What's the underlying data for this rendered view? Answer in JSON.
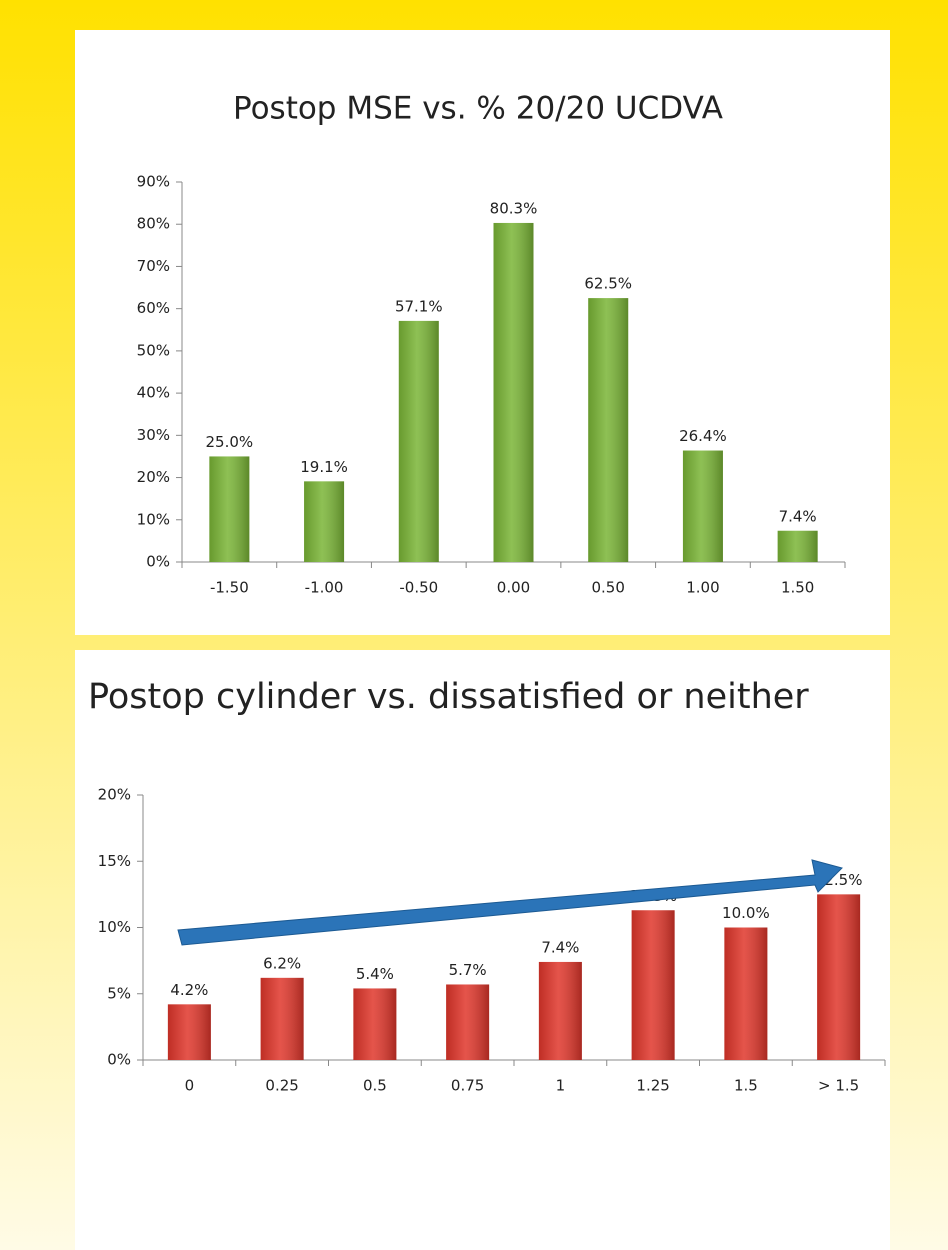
{
  "chart_data": [
    {
      "type": "bar",
      "title": "Postop MSE vs. % 20/20 UCDVA",
      "categories": [
        "-1.50",
        "-1.00",
        "-0.50",
        "0.00",
        "0.50",
        "1.00",
        "1.50"
      ],
      "values": [
        25.0,
        19.1,
        57.1,
        80.3,
        62.5,
        26.4,
        7.4
      ],
      "value_labels": [
        "25.0%",
        "19.1%",
        "57.1%",
        "80.3%",
        "62.5%",
        "26.4%",
        "7.4%"
      ],
      "color": "#7ab536",
      "ylim": [
        0,
        90
      ],
      "yticks": [
        {
          "value": 0,
          "label": "0%"
        },
        {
          "value": 10,
          "label": "10%"
        },
        {
          "value": 20,
          "label": "20%"
        },
        {
          "value": 30,
          "label": "30%"
        },
        {
          "value": 40,
          "label": "40%"
        },
        {
          "value": 50,
          "label": "50%"
        },
        {
          "value": 60,
          "label": "60%"
        },
        {
          "value": 70,
          "label": "70%"
        },
        {
          "value": 80,
          "label": "80%"
        },
        {
          "value": 90,
          "label": "90%"
        }
      ]
    },
    {
      "type": "bar",
      "title": "Postop cylinder vs. dissatisfied or neither",
      "categories": [
        "0",
        "0.25",
        "0.5",
        "0.75",
        "1",
        "1.25",
        "1.5",
        "> 1.5"
      ],
      "values": [
        4.2,
        6.2,
        5.4,
        5.7,
        7.4,
        11.3,
        10.0,
        12.5
      ],
      "value_labels": [
        "4.2%",
        "6.2%",
        "5.4%",
        "5.7%",
        "7.4%",
        "11.3%",
        "10.0%",
        "12.5%"
      ],
      "color": "#e0362b",
      "ylim": [
        0,
        20
      ],
      "yticks": [
        {
          "value": 0,
          "label": "0%"
        },
        {
          "value": 5,
          "label": "5%"
        },
        {
          "value": 10,
          "label": "10%"
        },
        {
          "value": 15,
          "label": "15%"
        },
        {
          "value": 20,
          "label": "20%"
        }
      ]
    }
  ]
}
